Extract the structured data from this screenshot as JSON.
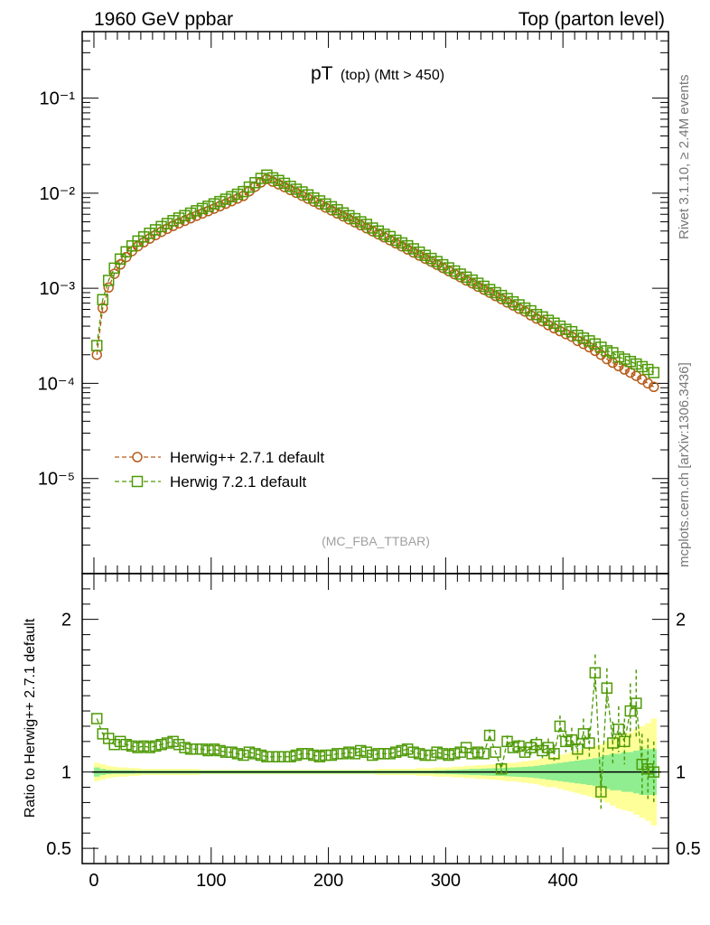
{
  "header": {
    "left": "1960 GeV ppbar",
    "right": "Top (parton level)"
  },
  "side_labels": {
    "rivet": "Rivet 3.1.10, ≥ 2.4M events",
    "mcplots": "mcplots.cern.ch [arXiv:1306.3436]"
  },
  "chart_data": [
    {
      "type": "line",
      "title": "pT (top) (Mtt > 450)",
      "title_main": "pT",
      "title_sub": "(top) (Mtt > 450)",
      "watermark": "(MC_FBA_TTBAR)",
      "yscale": "log",
      "ylim": [
        1e-06,
        0.5
      ],
      "xlim": [
        -10,
        490
      ],
      "xticks": [
        0,
        100,
        200,
        300,
        400
      ],
      "yticks": [
        1e-05,
        0.0001,
        0.001,
        0.01,
        0.1
      ],
      "ytick_labels": [
        "10⁻⁵",
        "10⁻⁴",
        "10⁻³",
        "10⁻²",
        "10⁻¹"
      ],
      "legend_position": "bottom-left",
      "x": [
        2.5,
        7.5,
        12.5,
        17.5,
        22.5,
        27.5,
        32.5,
        37.5,
        42.5,
        47.5,
        52.5,
        57.5,
        62.5,
        67.5,
        72.5,
        77.5,
        82.5,
        87.5,
        92.5,
        97.5,
        102.5,
        107.5,
        112.5,
        117.5,
        122.5,
        127.5,
        132.5,
        137.5,
        142.5,
        147.5,
        152.5,
        157.5,
        162.5,
        167.5,
        172.5,
        177.5,
        182.5,
        187.5,
        192.5,
        197.5,
        202.5,
        207.5,
        212.5,
        217.5,
        222.5,
        227.5,
        232.5,
        237.5,
        242.5,
        247.5,
        252.5,
        257.5,
        262.5,
        267.5,
        272.5,
        277.5,
        282.5,
        287.5,
        292.5,
        297.5,
        302.5,
        307.5,
        312.5,
        317.5,
        322.5,
        327.5,
        332.5,
        337.5,
        342.5,
        347.5,
        352.5,
        357.5,
        362.5,
        367.5,
        372.5,
        377.5,
        382.5,
        387.5,
        392.5,
        397.5,
        402.5,
        407.5,
        412.5,
        417.5,
        422.5,
        427.5,
        432.5,
        437.5,
        442.5,
        447.5,
        452.5,
        457.5,
        462.5,
        467.5,
        472.5,
        477.5
      ],
      "series": [
        {
          "name": "Herwig++ 2.7.1 default",
          "color": "#b85c1c",
          "marker": "circle",
          "values": [
            0.0002,
            0.00062,
            0.00102,
            0.00142,
            0.00178,
            0.00213,
            0.00246,
            0.00277,
            0.00305,
            0.00333,
            0.00362,
            0.00392,
            0.00422,
            0.00452,
            0.00482,
            0.00512,
            0.00545,
            0.00578,
            0.00612,
            0.00648,
            0.00688,
            0.0073,
            0.00775,
            0.00824,
            0.00878,
            0.00936,
            0.0105,
            0.0117,
            0.013,
            0.0141,
            0.0132,
            0.0124,
            0.0116,
            0.0108,
            0.0101,
            0.0094,
            0.00875,
            0.00815,
            0.0076,
            0.00707,
            0.00659,
            0.00613,
            0.00571,
            0.00531,
            0.00495,
            0.0046,
            0.00428,
            0.00398,
            0.0037,
            0.00344,
            0.0032,
            0.00297,
            0.00276,
            0.00256,
            0.00238,
            0.00221,
            0.00205,
            0.00191,
            0.00177,
            0.00164,
            0.00152,
            0.00141,
            0.00131,
            0.00121,
            0.00113,
            0.00104,
            0.00097,
            0.0009,
            0.00083,
            0.00077,
            0.00071,
            0.00066,
            0.00061,
            0.00057,
            0.00052,
            0.00048,
            0.00045,
            0.00041,
            0.00038,
            0.000355,
            0.00033,
            0.00031,
            0.00028,
            0.00026,
            0.00024,
            0.00022,
            0.0002,
            0.00018,
            0.000165,
            0.000152,
            0.00014,
            0.00013,
            0.00012,
            0.00011,
            0.0001,
            9.2e-05
          ]
        },
        {
          "name": "Herwig 7.2.1 default",
          "color": "#4e9a06",
          "marker": "square",
          "values": [
            0.00025,
            0.00076,
            0.00121,
            0.00163,
            0.00203,
            0.00242,
            0.00279,
            0.00314,
            0.00347,
            0.00379,
            0.00412,
            0.00446,
            0.0048,
            0.00514,
            0.00548,
            0.00581,
            0.00617,
            0.00653,
            0.0069,
            0.00729,
            0.00772,
            0.00817,
            0.00865,
            0.00918,
            0.00975,
            0.0104,
            0.0116,
            0.0129,
            0.0143,
            0.0155,
            0.0145,
            0.0136,
            0.0127,
            0.0118,
            0.011,
            0.0103,
            0.0096,
            0.0089,
            0.0083,
            0.0077,
            0.0072,
            0.0067,
            0.0062,
            0.0058,
            0.0054,
            0.005,
            0.0047,
            0.0043,
            0.004,
            0.0037,
            0.0035,
            0.0032,
            0.003,
            0.0028,
            0.0026,
            0.0024,
            0.00222,
            0.00206,
            0.00191,
            0.00177,
            0.00164,
            0.00152,
            0.00141,
            0.00131,
            0.00122,
            0.00113,
            0.00105,
            0.00097,
            0.0009,
            0.00084,
            0.00078,
            0.00072,
            0.00067,
            0.00062,
            0.00058,
            0.00053,
            0.0005,
            0.00046,
            0.00043,
            0.0004,
            0.00037,
            0.00035,
            0.00032,
            0.0003,
            0.00028,
            0.00026,
            0.00024,
            0.00022,
            0.00021,
            0.00019,
            0.00018,
            0.00017,
            0.00016,
            0.00015,
            0.00014,
            0.00013
          ]
        }
      ]
    },
    {
      "type": "line",
      "ylabel": "Ratio to Herwig++ 2.7.1 default",
      "ylim": [
        0.4,
        2.3
      ],
      "xlim": [
        -10,
        490
      ],
      "xticks": [
        0,
        100,
        200,
        300,
        400
      ],
      "yticks": [
        0.5,
        1,
        2
      ],
      "ytick_labels": [
        "0.5",
        "1",
        "2"
      ],
      "x": [
        2.5,
        7.5,
        12.5,
        17.5,
        22.5,
        27.5,
        32.5,
        37.5,
        42.5,
        47.5,
        52.5,
        57.5,
        62.5,
        67.5,
        72.5,
        77.5,
        82.5,
        87.5,
        92.5,
        97.5,
        102.5,
        107.5,
        112.5,
        117.5,
        122.5,
        127.5,
        132.5,
        137.5,
        142.5,
        147.5,
        152.5,
        157.5,
        162.5,
        167.5,
        172.5,
        177.5,
        182.5,
        187.5,
        192.5,
        197.5,
        202.5,
        207.5,
        212.5,
        217.5,
        222.5,
        227.5,
        232.5,
        237.5,
        242.5,
        247.5,
        252.5,
        257.5,
        262.5,
        267.5,
        272.5,
        277.5,
        282.5,
        287.5,
        292.5,
        297.5,
        302.5,
        307.5,
        312.5,
        317.5,
        322.5,
        327.5,
        332.5,
        337.5,
        342.5,
        347.5,
        352.5,
        357.5,
        362.5,
        367.5,
        372.5,
        377.5,
        382.5,
        387.5,
        392.5,
        397.5,
        402.5,
        407.5,
        412.5,
        417.5,
        422.5,
        427.5,
        432.5,
        437.5,
        442.5,
        447.5,
        452.5,
        457.5,
        462.5,
        467.5,
        472.5,
        477.5
      ],
      "series": [
        {
          "name": "Herwig 7.2.1 default",
          "color": "#4e9a06",
          "values": [
            1.35,
            1.25,
            1.22,
            1.18,
            1.2,
            1.18,
            1.17,
            1.16,
            1.17,
            1.16,
            1.17,
            1.18,
            1.19,
            1.2,
            1.18,
            1.16,
            1.15,
            1.15,
            1.15,
            1.14,
            1.15,
            1.14,
            1.13,
            1.13,
            1.12,
            1.11,
            1.13,
            1.12,
            1.11,
            1.1,
            1.1,
            1.1,
            1.1,
            1.1,
            1.11,
            1.12,
            1.12,
            1.11,
            1.1,
            1.11,
            1.11,
            1.12,
            1.12,
            1.13,
            1.12,
            1.14,
            1.13,
            1.11,
            1.12,
            1.12,
            1.12,
            1.13,
            1.14,
            1.15,
            1.13,
            1.12,
            1.11,
            1.11,
            1.13,
            1.12,
            1.11,
            1.12,
            1.13,
            1.16,
            1.12,
            1.13,
            1.12,
            1.24,
            1.13,
            1.02,
            1.2,
            1.16,
            1.17,
            1.13,
            1.16,
            1.18,
            1.14,
            1.16,
            1.12,
            1.3,
            1.2,
            1.21,
            1.15,
            1.25,
            1.19,
            1.65,
            0.87,
            1.55,
            1.19,
            1.28,
            1.2,
            1.4,
            1.45,
            1.05,
            1.02,
            1.0
          ],
          "errors": [
            0.02,
            0.02,
            0.02,
            0.02,
            0.02,
            0.02,
            0.02,
            0.02,
            0.02,
            0.02,
            0.02,
            0.02,
            0.02,
            0.02,
            0.02,
            0.02,
            0.02,
            0.02,
            0.02,
            0.02,
            0.02,
            0.02,
            0.02,
            0.02,
            0.02,
            0.02,
            0.02,
            0.02,
            0.02,
            0.02,
            0.02,
            0.02,
            0.02,
            0.02,
            0.02,
            0.02,
            0.02,
            0.02,
            0.02,
            0.02,
            0.02,
            0.02,
            0.02,
            0.02,
            0.02,
            0.02,
            0.02,
            0.02,
            0.02,
            0.02,
            0.02,
            0.02,
            0.02,
            0.02,
            0.02,
            0.02,
            0.02,
            0.02,
            0.02,
            0.02,
            0.02,
            0.02,
            0.02,
            0.02,
            0.02,
            0.02,
            0.02,
            0.04,
            0.03,
            0.04,
            0.04,
            0.04,
            0.04,
            0.04,
            0.05,
            0.05,
            0.05,
            0.06,
            0.06,
            0.07,
            0.07,
            0.08,
            0.08,
            0.1,
            0.1,
            0.12,
            0.12,
            0.13,
            0.14,
            0.15,
            0.15,
            0.18,
            0.22,
            0.2,
            0.2,
            0.2
          ]
        }
      ],
      "bands": [
        {
          "color": "#90ee90",
          "half_width": [
            0.03,
            0.02,
            0.015,
            0.012,
            0.012,
            0.012,
            0.012,
            0.01,
            0.01,
            0.01,
            0.01,
            0.01,
            0.01,
            0.01,
            0.01,
            0.01,
            0.01,
            0.01,
            0.01,
            0.01,
            0.01,
            0.01,
            0.01,
            0.01,
            0.01,
            0.01,
            0.01,
            0.01,
            0.01,
            0.01,
            0.01,
            0.01,
            0.01,
            0.01,
            0.01,
            0.01,
            0.01,
            0.01,
            0.01,
            0.01,
            0.01,
            0.01,
            0.01,
            0.01,
            0.01,
            0.01,
            0.01,
            0.01,
            0.01,
            0.01,
            0.01,
            0.01,
            0.01,
            0.01,
            0.01,
            0.01,
            0.01,
            0.01,
            0.012,
            0.012,
            0.014,
            0.015,
            0.016,
            0.018,
            0.02,
            0.02,
            0.022,
            0.024,
            0.025,
            0.026,
            0.028,
            0.03,
            0.032,
            0.034,
            0.036,
            0.04,
            0.045,
            0.05,
            0.055,
            0.06,
            0.065,
            0.07,
            0.075,
            0.08,
            0.085,
            0.09,
            0.1,
            0.11,
            0.12,
            0.12,
            0.13,
            0.13,
            0.14,
            0.15,
            0.15,
            0.15
          ]
        },
        {
          "color": "#ffff99",
          "half_width": [
            0.06,
            0.05,
            0.04,
            0.035,
            0.03,
            0.03,
            0.025,
            0.025,
            0.02,
            0.02,
            0.02,
            0.02,
            0.02,
            0.02,
            0.02,
            0.02,
            0.02,
            0.02,
            0.015,
            0.015,
            0.015,
            0.015,
            0.015,
            0.015,
            0.015,
            0.015,
            0.015,
            0.015,
            0.015,
            0.015,
            0.015,
            0.015,
            0.015,
            0.015,
            0.015,
            0.015,
            0.015,
            0.015,
            0.015,
            0.015,
            0.015,
            0.015,
            0.015,
            0.015,
            0.015,
            0.015,
            0.015,
            0.015,
            0.02,
            0.02,
            0.02,
            0.02,
            0.02,
            0.02,
            0.02,
            0.025,
            0.025,
            0.025,
            0.03,
            0.03,
            0.03,
            0.035,
            0.035,
            0.04,
            0.04,
            0.045,
            0.045,
            0.05,
            0.05,
            0.055,
            0.06,
            0.06,
            0.065,
            0.07,
            0.075,
            0.08,
            0.09,
            0.1,
            0.1,
            0.11,
            0.12,
            0.13,
            0.14,
            0.15,
            0.16,
            0.17,
            0.18,
            0.2,
            0.22,
            0.24,
            0.25,
            0.26,
            0.28,
            0.3,
            0.32,
            0.35
          ]
        }
      ]
    }
  ]
}
